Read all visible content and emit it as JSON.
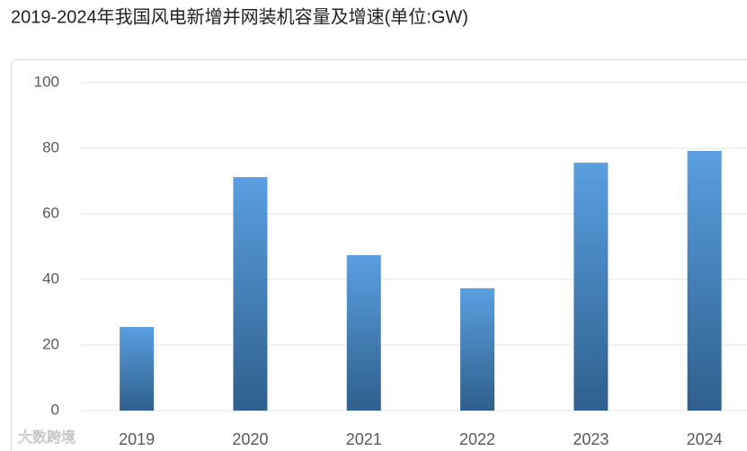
{
  "chart_data": {
    "type": "bar",
    "title": "2019-2024年我国风电新增并网装机容量及增速(单位:GW)",
    "categories": [
      "2019",
      "2020",
      "2021",
      "2022",
      "2023",
      "2024"
    ],
    "values": [
      25.5,
      71.2,
      47.4,
      37.3,
      75.6,
      79.2
    ],
    "color": "#4a86c5",
    "ylim": [
      0,
      100
    ],
    "yticks": [
      0,
      20,
      40,
      60,
      80,
      100
    ],
    "grid": true,
    "watermark": "大数跨境"
  }
}
